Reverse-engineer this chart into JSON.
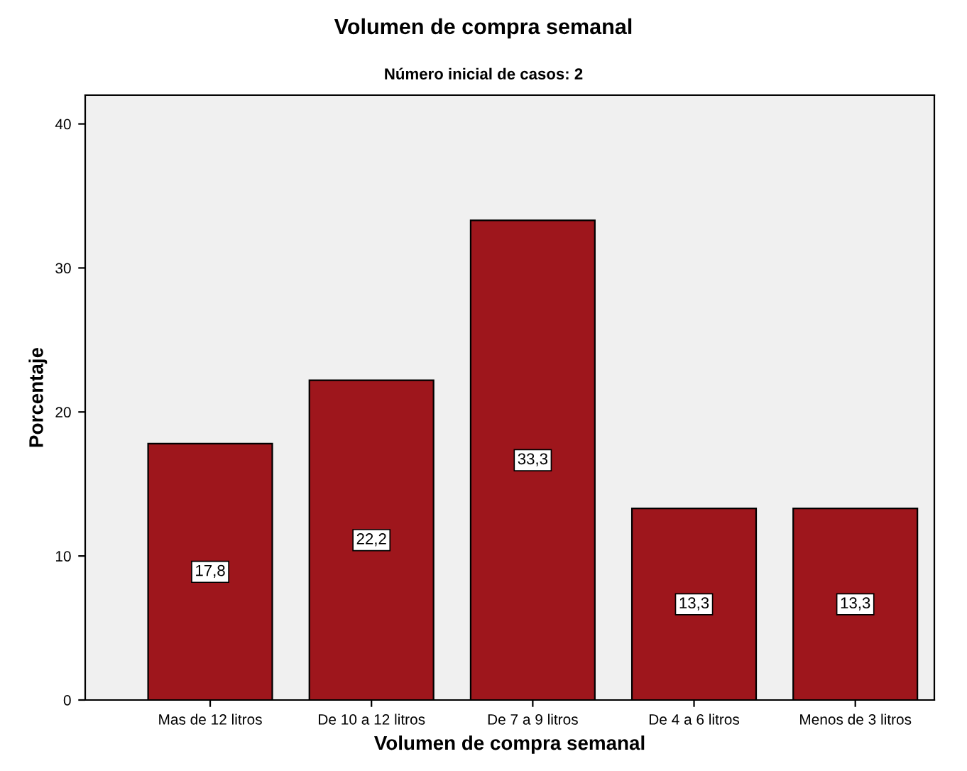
{
  "chart_data": {
    "type": "bar",
    "title": "Volumen de compra semanal",
    "subtitle": "Número inicial de casos: 2",
    "xlabel": "Volumen de compra semanal",
    "ylabel": "Porcentaje",
    "categories": [
      "Mas de 12 litros",
      "De 10 a 12 litros",
      "De 7 a 9 litros",
      "De 4 a 6 litros",
      "Menos de 3 litros"
    ],
    "values": [
      17.8,
      22.2,
      33.3,
      13.3,
      13.3
    ],
    "value_labels": [
      "17,8",
      "22,2",
      "33,3",
      "13,3",
      "13,3"
    ],
    "color": "#9e161c",
    "ylim": [
      0,
      42
    ],
    "yticks": [
      0,
      10,
      20,
      30,
      40
    ],
    "grid": false,
    "legend": false
  }
}
